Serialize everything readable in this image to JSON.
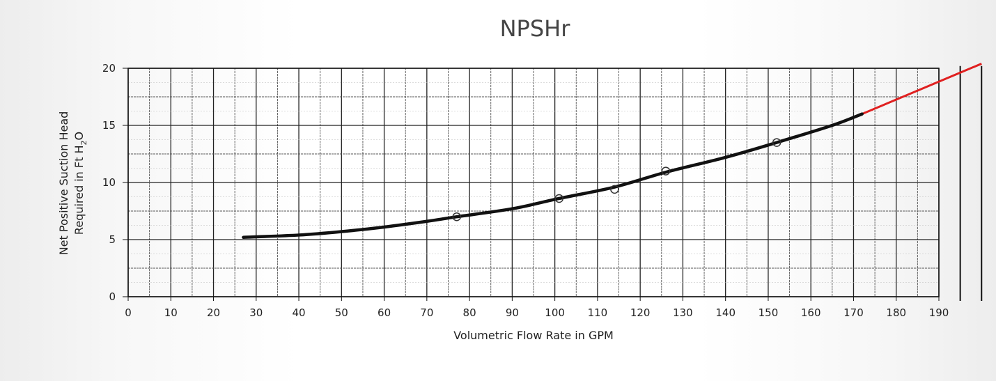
{
  "chart_data": {
    "type": "line",
    "title": "NPSHr",
    "xlabel": "Volumetric Flow Rate in GPM",
    "ylabel_line1": "Net Positive Suction Head",
    "ylabel_line2_prefix": "Required in Ft H",
    "ylabel_line2_sub": "2",
    "ylabel_line2_suffix": "O",
    "xlim": [
      0,
      190
    ],
    "ylim": [
      0,
      20
    ],
    "x_ticks": [
      0,
      10,
      20,
      30,
      40,
      50,
      60,
      70,
      80,
      90,
      100,
      110,
      120,
      130,
      140,
      150,
      160,
      170,
      180,
      190
    ],
    "y_ticks": [
      0,
      5,
      10,
      15,
      20
    ],
    "grid": true,
    "curve": {
      "x": [
        27,
        40,
        50,
        60,
        70,
        77,
        90,
        101,
        114,
        126,
        140,
        152,
        165,
        172
      ],
      "y": [
        5.2,
        5.4,
        5.7,
        6.1,
        6.6,
        7.0,
        7.7,
        8.6,
        9.6,
        10.9,
        12.2,
        13.5,
        15.0,
        16.0
      ],
      "color": "#111111"
    },
    "points": {
      "x": [
        77,
        101,
        114,
        126,
        152
      ],
      "y": [
        7.0,
        8.6,
        9.4,
        11.0,
        13.5
      ]
    },
    "extension": {
      "x": [
        172,
        200
      ],
      "y": [
        16.0,
        20.4
      ],
      "color": "#e02020"
    },
    "vertical_markers": {
      "x": [
        195,
        200
      ],
      "y_range": [
        0,
        20.2
      ],
      "color": "#111111"
    }
  }
}
